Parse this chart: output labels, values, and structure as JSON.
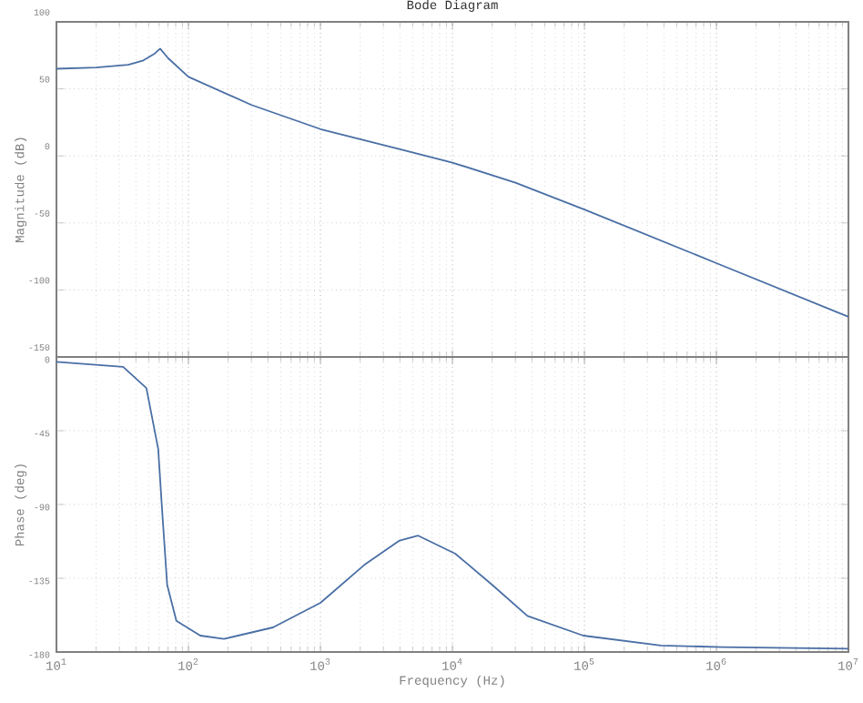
{
  "chart_data": [
    {
      "type": "line",
      "title": "Bode Diagram",
      "ylabel": "Magnitude (dB)",
      "log": "x",
      "grid": true,
      "tick_labels": "y",
      "xlim": [
        10,
        10000000
      ],
      "xticks": [
        {
          "value": 10,
          "label": null
        },
        {
          "value": 100,
          "label": null
        },
        {
          "value": 1000,
          "label": null
        },
        {
          "value": 10000,
          "label": null
        },
        {
          "value": 100000,
          "label": null
        },
        {
          "value": 1000000,
          "label": null
        },
        {
          "value": 10000000,
          "label": null
        }
      ],
      "ylim": [
        -150,
        100
      ],
      "yticks": [
        -150,
        -100,
        -50,
        0,
        50,
        100
      ],
      "series": [
        {
          "color": "#4a6fa5",
          "x": [
            10,
            20,
            35,
            45,
            55,
            61,
            70,
            100,
            300,
            1000,
            4000,
            10000,
            30000,
            100000,
            1000000,
            10000000
          ],
          "values": [
            65,
            66,
            68,
            71,
            76,
            80,
            73,
            59,
            38,
            20,
            5,
            -5,
            -20,
            -40,
            -80,
            -120
          ]
        }
      ]
    },
    {
      "type": "line",
      "xlabel": "Frequency (Hz)",
      "ylabel": "Phase (deg)",
      "log": "x",
      "grid": true,
      "xlim": [
        10,
        10000000
      ],
      "xticks": [
        {
          "value": 10,
          "label": "10$^{1}$"
        },
        {
          "value": 100,
          "label": "10$^{2}$"
        },
        {
          "value": 1000,
          "label": "10$^{3}$"
        },
        {
          "value": 10000,
          "label": "10$^{4}$"
        },
        {
          "value": 100000,
          "label": "10$^{5}$"
        },
        {
          "value": 1000000,
          "label": "10$^{6}$"
        },
        {
          "value": 10000000,
          "label": "10$^{7}$"
        }
      ],
      "ylim": [
        -180,
        0
      ],
      "yticks": [
        -180,
        -135,
        -90,
        -45,
        0
      ],
      "series": [
        {
          "color": "#4a6fa5",
          "x": [
            10,
            32,
            48,
            59,
            63,
            69,
            81,
            123,
            186,
            437,
            1000,
            2140,
            3980,
            5500,
            10500,
            20000,
            37000,
            98000,
            380000,
            1100000,
            10000000
          ],
          "values": [
            -3,
            -6,
            -19,
            -56,
            -92,
            -139,
            -161,
            -170,
            -172,
            -165,
            -150,
            -127,
            -112,
            -109,
            -120,
            -139,
            -158,
            -170,
            -176,
            -177,
            -178
          ]
        }
      ]
    }
  ]
}
